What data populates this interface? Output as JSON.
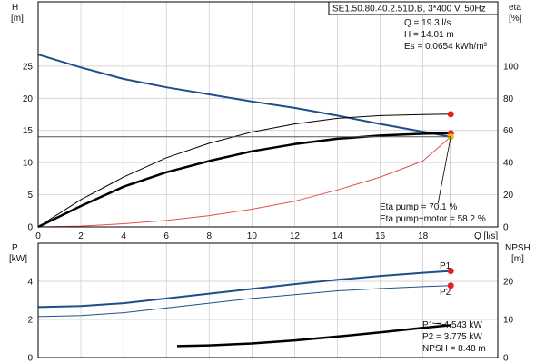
{
  "colors": {
    "background": "#ffffff",
    "grid": "#c8c8c8",
    "pump_curve": "#1f4e8c",
    "black": "#000000",
    "red_curve": "#e05050",
    "marker_red": "#e02020",
    "marker_yellow": "#e6c000"
  },
  "chart_data": [
    {
      "type": "line",
      "id": "top",
      "title_box": "SE1.50.80.40.2.51D.B, 3*400 V, 50Hz",
      "xlabel": "Q [l/s]",
      "ylabel_left": "H",
      "ylabel_left_unit": "[m]",
      "ylabel_right": "eta",
      "ylabel_right_unit": "[%]",
      "xlim": [
        0,
        21.5
      ],
      "ylim_left": [
        0,
        35
      ],
      "ylim_right": [
        0,
        140
      ],
      "xticks": [
        0,
        2,
        4,
        6,
        8,
        10,
        12,
        14,
        16,
        18
      ],
      "yticks_left": [
        0,
        5,
        10,
        15,
        20,
        25
      ],
      "yticks_right": [
        0,
        20,
        40,
        60,
        80,
        100
      ],
      "grid": true,
      "operating_point": {
        "Q": 19.3,
        "H": 14.01
      },
      "info_lines": [
        "Q = 19.3 l/s",
        "H = 14.01 m",
        "Es = 0.0654 kWh/m³"
      ],
      "eta_lines": [
        "Eta pump = 70.1 %",
        "Eta pump+motor = 58.2 %"
      ],
      "series": [
        {
          "key": "H",
          "axis": "left",
          "color": "#1f4e8c",
          "width": 2,
          "x": [
            0,
            2,
            4,
            6,
            8,
            10,
            12,
            14,
            16,
            18,
            19.3
          ],
          "y": [
            26.8,
            24.8,
            23.0,
            21.7,
            20.6,
            19.5,
            18.5,
            17.3,
            16.0,
            14.8,
            14.0
          ]
        },
        {
          "key": "eta_pump",
          "axis": "right",
          "color": "#000000",
          "width": 1,
          "x": [
            0,
            2,
            4,
            6,
            8,
            10,
            12,
            14,
            16,
            18,
            19.3
          ],
          "y": [
            0,
            17,
            31,
            43,
            52,
            59,
            64,
            67.5,
            69.2,
            69.9,
            70.1
          ]
        },
        {
          "key": "eta_pump_motor",
          "axis": "right",
          "color": "#000000",
          "width": 2.5,
          "x": [
            0,
            2,
            4,
            6,
            8,
            10,
            12,
            14,
            16,
            18,
            19.3
          ],
          "y": [
            0,
            13,
            25,
            34,
            41,
            47,
            51.5,
            54.8,
            56.8,
            57.9,
            58.2
          ]
        },
        {
          "key": "Es",
          "axis": "right",
          "color": "#e05050",
          "width": 1,
          "x": [
            0,
            2,
            4,
            6,
            8,
            10,
            12,
            14,
            16,
            18,
            19.3
          ],
          "y": [
            0,
            0.5,
            2,
            4,
            7,
            11,
            16,
            23,
            31,
            41,
            56
          ]
        }
      ],
      "markers": [
        {
          "axis": "right",
          "x": 19.3,
          "y": 70.1,
          "color": "#e02020"
        },
        {
          "axis": "right",
          "x": 19.3,
          "y": 58.2,
          "color": "#e02020"
        },
        {
          "axis": "left",
          "x": 19.3,
          "y": 14.01,
          "color": "#e6c000"
        }
      ]
    },
    {
      "type": "line",
      "id": "bottom",
      "xlabel": "",
      "ylabel_left": "P",
      "ylabel_left_unit": "[kW]",
      "ylabel_right": "NPSH",
      "ylabel_right_unit": "[m]",
      "xlim": [
        0,
        21.5
      ],
      "ylim_left": [
        0,
        6
      ],
      "ylim_right": [
        0,
        30
      ],
      "yticks_left": [
        0,
        2,
        4
      ],
      "yticks_right": [
        0,
        10,
        20
      ],
      "grid": true,
      "info_lines": [
        "P1 = 4.543 kW",
        "P2 = 3.775 kW",
        "NPSH = 8.48 m"
      ],
      "series": [
        {
          "key": "P1",
          "label": "P1",
          "axis": "left",
          "color": "#1f4e8c",
          "width": 2,
          "x": [
            0,
            2,
            4,
            6,
            8,
            10,
            12,
            14,
            16,
            18,
            19.3
          ],
          "y": [
            2.65,
            2.7,
            2.85,
            3.1,
            3.35,
            3.6,
            3.85,
            4.08,
            4.28,
            4.45,
            4.543
          ]
        },
        {
          "key": "P2",
          "label": "P2",
          "axis": "left",
          "color": "#1f4e8c",
          "width": 1,
          "x": [
            0,
            2,
            4,
            6,
            8,
            10,
            12,
            14,
            16,
            18,
            19.3
          ],
          "y": [
            2.15,
            2.2,
            2.35,
            2.6,
            2.85,
            3.1,
            3.3,
            3.5,
            3.62,
            3.72,
            3.775
          ]
        },
        {
          "key": "NPSH",
          "axis": "right",
          "color": "#000000",
          "width": 2.5,
          "x": [
            6.5,
            8,
            10,
            12,
            14,
            16,
            18,
            19.3
          ],
          "y": [
            3.0,
            3.2,
            3.7,
            4.5,
            5.5,
            6.6,
            7.8,
            8.48
          ]
        }
      ],
      "markers": [
        {
          "axis": "left",
          "x": 19.3,
          "y": 4.543,
          "color": "#e02020"
        },
        {
          "axis": "left",
          "x": 19.3,
          "y": 3.775,
          "color": "#e02020"
        }
      ]
    }
  ]
}
